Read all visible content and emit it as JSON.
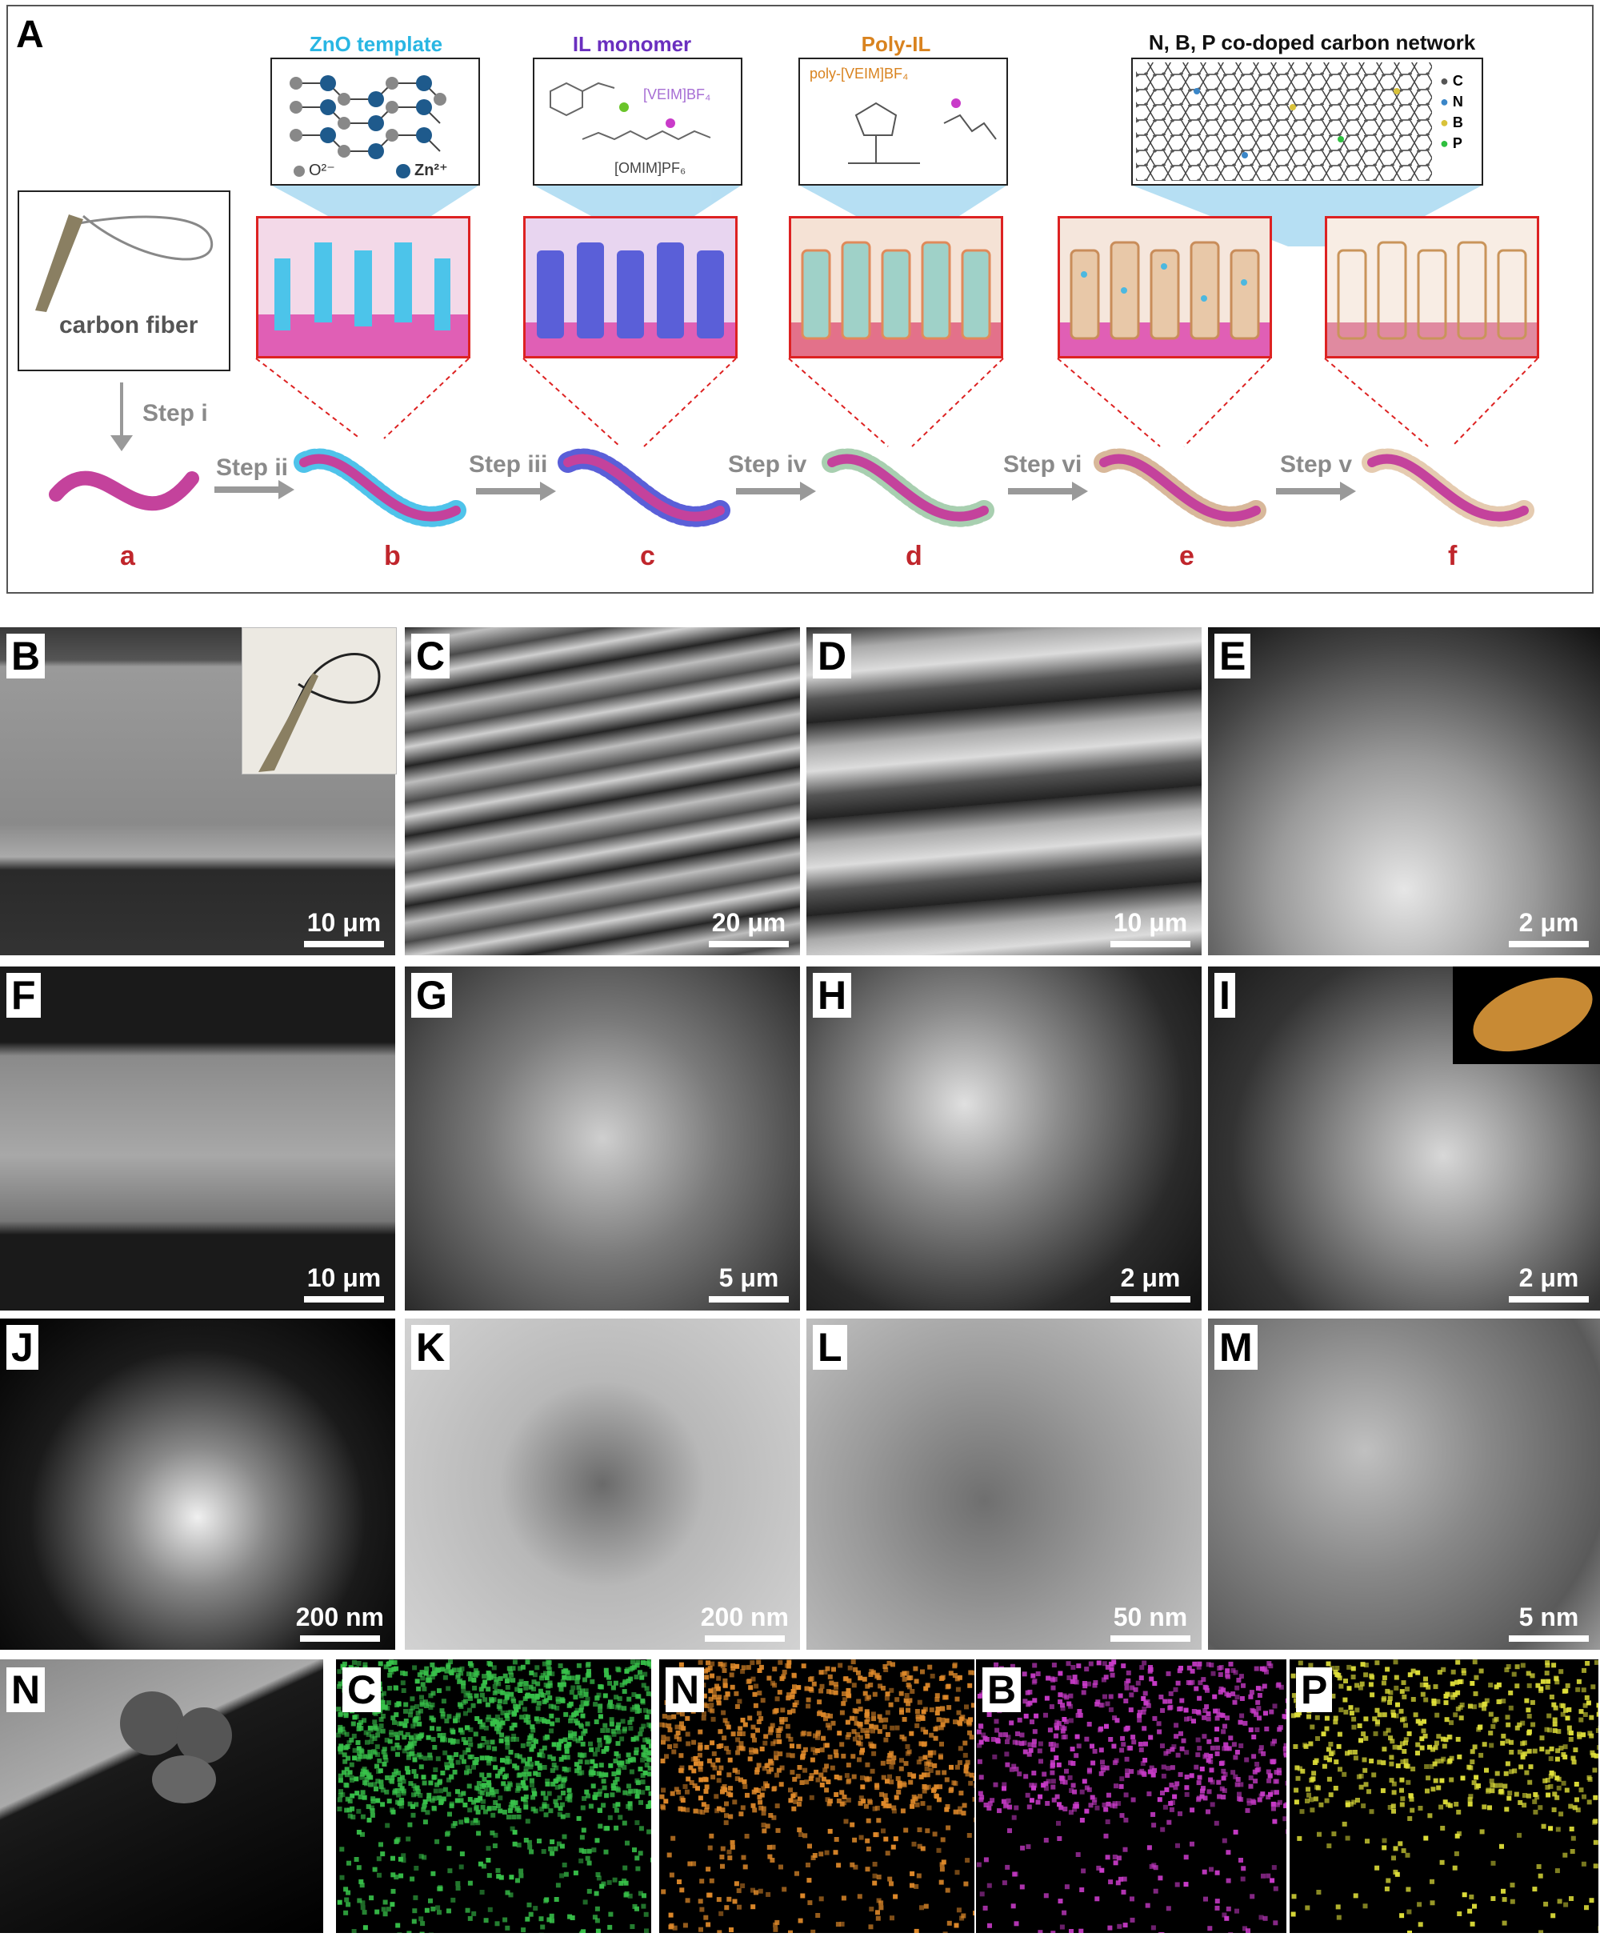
{
  "panel_A": {
    "letter": "A",
    "carbon_fiber_label": "carbon fiber",
    "titles": {
      "zno": "ZnO template",
      "il_monomer": "IL monomer",
      "poly_il": "Poly-IL",
      "network": "N, B, P co-doped carbon network"
    },
    "title_colors": {
      "zno": "#29b6e3",
      "il_monomer": "#6a2fbf",
      "poly_il": "#d9831f",
      "network": "#111111"
    },
    "zno_legend": {
      "o": "O²⁻",
      "zn": "Zn²⁺"
    },
    "il_labels": {
      "veim": "[VEIM]BF₄",
      "omim": "[OMIM]PF₆"
    },
    "poly_label": "poly-[VEIM]BF₄",
    "element_legend": [
      "C",
      "N",
      "B",
      "P"
    ],
    "element_colors": [
      "#555555",
      "#3a86c8",
      "#d9c23a",
      "#2fbf3f"
    ],
    "steps": [
      "Step i",
      "Step ii",
      "Step iii",
      "Step iv",
      "Step vi",
      "Step v"
    ],
    "stages": [
      "a",
      "b",
      "c",
      "d",
      "e",
      "f"
    ]
  },
  "panels": [
    {
      "letter": "B",
      "scale": "10 μm"
    },
    {
      "letter": "C",
      "scale": "20 μm"
    },
    {
      "letter": "D",
      "scale": "10 μm"
    },
    {
      "letter": "E",
      "scale": "2 μm"
    },
    {
      "letter": "F",
      "scale": "10 μm"
    },
    {
      "letter": "G",
      "scale": "5 μm"
    },
    {
      "letter": "H",
      "scale": "2 μm"
    },
    {
      "letter": "I",
      "scale": "2 μm"
    },
    {
      "letter": "J",
      "scale": "200 nm"
    },
    {
      "letter": "K",
      "scale": "200 nm"
    },
    {
      "letter": "L",
      "scale": "50 nm"
    },
    {
      "letter": "M",
      "scale": "5 nm"
    }
  ],
  "eds": {
    "letter": "N",
    "maps": [
      {
        "label": "C",
        "color": "#38c24a"
      },
      {
        "label": "N",
        "color": "#e08a2a"
      },
      {
        "label": "B",
        "color": "#c93bc9"
      },
      {
        "label": "P",
        "color": "#e0e03a"
      }
    ]
  }
}
